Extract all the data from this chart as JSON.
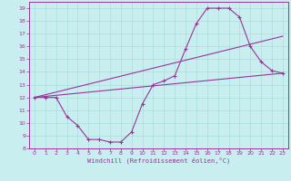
{
  "xlabel": "Windchill (Refroidissement éolien,°C)",
  "bg_color": "#c8eef0",
  "grid_color": "#aadddd",
  "line_color": "#993399",
  "ylim": [
    8,
    19.5
  ],
  "xlim": [
    -0.5,
    23.5
  ],
  "yticks": [
    8,
    9,
    10,
    11,
    12,
    13,
    14,
    15,
    16,
    17,
    18,
    19
  ],
  "xticks": [
    0,
    1,
    2,
    3,
    4,
    5,
    6,
    7,
    8,
    9,
    10,
    11,
    12,
    13,
    14,
    15,
    16,
    17,
    18,
    19,
    20,
    21,
    22,
    23
  ],
  "line1_x": [
    0,
    1,
    2,
    3,
    4,
    5,
    6,
    7,
    8,
    9,
    10,
    11,
    12,
    13,
    14,
    15,
    16,
    17,
    18,
    19,
    20,
    21,
    22,
    23
  ],
  "line1_y": [
    12,
    12,
    12,
    10.5,
    9.8,
    8.7,
    8.7,
    8.5,
    8.5,
    9.3,
    11.5,
    13.0,
    13.3,
    13.7,
    15.8,
    17.8,
    19.0,
    19.0,
    19.0,
    18.3,
    16.0,
    14.8,
    14.1,
    13.9
  ],
  "line2_x": [
    0,
    23
  ],
  "line2_y": [
    12,
    13.9
  ],
  "line3_x": [
    0,
    23
  ],
  "line3_y": [
    12,
    16.8
  ]
}
